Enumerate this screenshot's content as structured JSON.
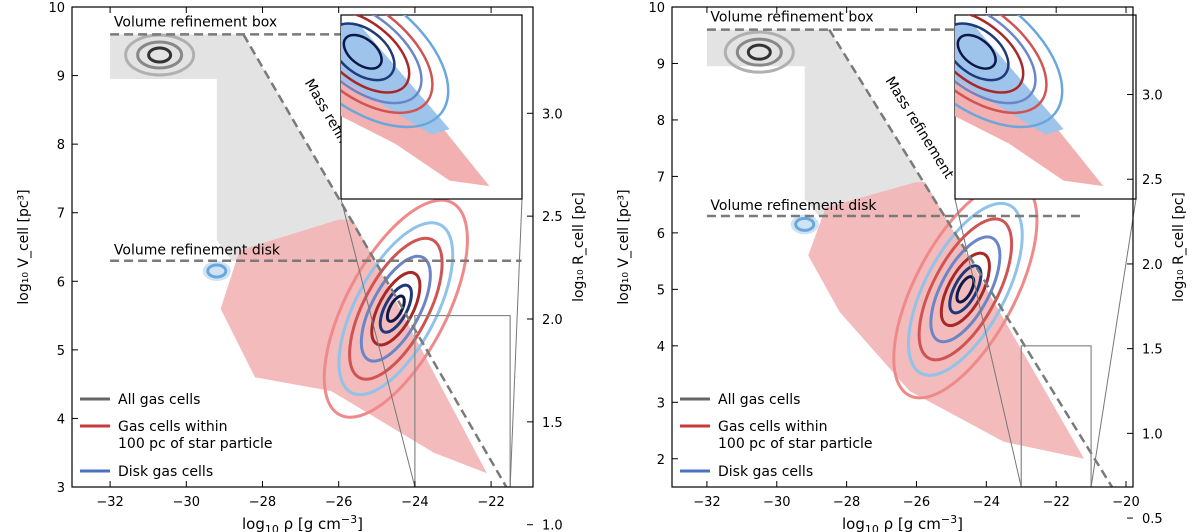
{
  "chart_data": [
    {
      "type": "scatter",
      "title": "",
      "xlabel_main": "log",
      "xlabel_sub": "10",
      "xlabel_rest": " ρ [g cm",
      "xlabel_sup": "−3",
      "xlabel_end": "]",
      "ylabel_left": "log₁₀ V_cell [pc³]",
      "ylabel_right": "log₁₀ R_cell [pc]",
      "xlim": [
        -33,
        -20.9
      ],
      "ylim": [
        3,
        10
      ],
      "xticks": [
        -32,
        -30,
        -28,
        -26,
        -24,
        -22
      ],
      "xtick_labels": [
        "−32",
        "−30",
        "−28",
        "−26",
        "−24",
        "−22"
      ],
      "yticks": [
        3,
        4,
        5,
        6,
        7,
        8,
        9,
        10
      ],
      "ytick_labels": [
        "3",
        "4",
        "5",
        "6",
        "7",
        "8",
        "9",
        "10"
      ],
      "right_ticks": [
        1.0,
        1.5,
        2.0,
        2.5,
        3.0
      ],
      "right_tick_labels": [
        "1.0",
        "1.5",
        "2.0",
        "2.5",
        "3.0"
      ],
      "lines": {
        "volume_box": {
          "y": 9.6,
          "x_from": -32,
          "x_to": -24.9,
          "label": "Volume refinement box"
        },
        "volume_disk": {
          "y": 6.3,
          "x_from": -32,
          "x_to": -21.2,
          "label": "Volume refinement disk"
        },
        "mass": {
          "x": [
            -28.5,
            -21.6
          ],
          "y": [
            9.6,
            3.0
          ],
          "label": "Mass refinement"
        }
      },
      "zoom_box": {
        "x": [
          -24,
          -21.5
        ],
        "y": [
          3,
          5.5
        ]
      },
      "series": [
        {
          "name": "All gas cells",
          "color": "#666666",
          "peaks": [
            {
              "x": -30.7,
              "y": 9.3
            },
            {
              "x": -24.8,
              "y": 6.0
            }
          ]
        },
        {
          "name": "Gas cells within 100 pc of star particle",
          "color": "#c93a3a",
          "peaks": [
            {
              "x": -24.5,
              "y": 5.6
            }
          ]
        },
        {
          "name": "Disk gas cells",
          "color": "#2c58a8",
          "peaks": [
            {
              "x": -24.4,
              "y": 5.4
            }
          ]
        }
      ],
      "legend": [
        {
          "line1": "All gas cells",
          "line2": "",
          "color": "#666666"
        },
        {
          "line1": "Gas cells within",
          "line2": "100 pc of star particle",
          "color": "#c93a3a"
        },
        {
          "line1": "Disk gas cells",
          "line2": "",
          "color": "#4a72c0"
        }
      ],
      "legend_location": "lower-left"
    },
    {
      "type": "scatter",
      "title": "",
      "xlabel_main": "log",
      "xlabel_sub": "10",
      "xlabel_rest": " ρ [g cm",
      "xlabel_sup": "−3",
      "xlabel_end": "]",
      "ylabel_left": "log₁₀ V_cell [pc³]",
      "ylabel_right": "log₁₀ R_cell [pc]",
      "xlim": [
        -33,
        -19.8
      ],
      "ylim": [
        1.5,
        10
      ],
      "xticks": [
        -32,
        -30,
        -28,
        -26,
        -24,
        -22,
        -20
      ],
      "xtick_labels": [
        "−32",
        "−30",
        "−28",
        "−26",
        "−24",
        "−22",
        "−20"
      ],
      "yticks": [
        2,
        3,
        4,
        5,
        6,
        7,
        8,
        9,
        10
      ],
      "ytick_labels": [
        "2",
        "3",
        "4",
        "5",
        "6",
        "7",
        "8",
        "9",
        "10"
      ],
      "right_ticks": [
        0.5,
        1.0,
        1.5,
        2.0,
        2.5,
        3.0
      ],
      "right_tick_labels": [
        "0.5",
        "1.0",
        "1.5",
        "2.0",
        "2.5",
        "3.0"
      ],
      "lines": {
        "volume_box": {
          "y": 9.6,
          "x_from": -32,
          "x_to": -24.9,
          "label": "Volume refinement box"
        },
        "volume_disk": {
          "y": 6.3,
          "x_from": -32,
          "x_to": -21.2,
          "label": "Volume refinement disk"
        },
        "mass": {
          "x": [
            -28.5,
            -20.4
          ],
          "y": [
            9.6,
            1.5
          ],
          "label": "Mass refinement"
        }
      },
      "zoom_box": {
        "x": [
          -23,
          -21
        ],
        "y": [
          1.5,
          4.0
        ]
      },
      "series": [
        {
          "name": "All gas cells",
          "color": "#666666",
          "peaks": [
            {
              "x": -30.5,
              "y": 9.2
            },
            {
              "x": -24.8,
              "y": 5.3
            }
          ]
        },
        {
          "name": "Gas cells within 100 pc of star particle",
          "color": "#c93a3a",
          "peaks": [
            {
              "x": -24.6,
              "y": 5.0
            }
          ]
        },
        {
          "name": "Disk gas cells",
          "color": "#2c58a8",
          "peaks": [
            {
              "x": -24.5,
              "y": 5.0
            }
          ]
        }
      ],
      "legend": [
        {
          "line1": "All gas cells",
          "line2": "",
          "color": "#666666"
        },
        {
          "line1": "Gas cells within",
          "line2": "100 pc of star particle",
          "color": "#c93a3a"
        },
        {
          "line1": "Disk gas cells",
          "line2": "",
          "color": "#4a72c0"
        }
      ],
      "legend_location": "lower-left"
    }
  ]
}
